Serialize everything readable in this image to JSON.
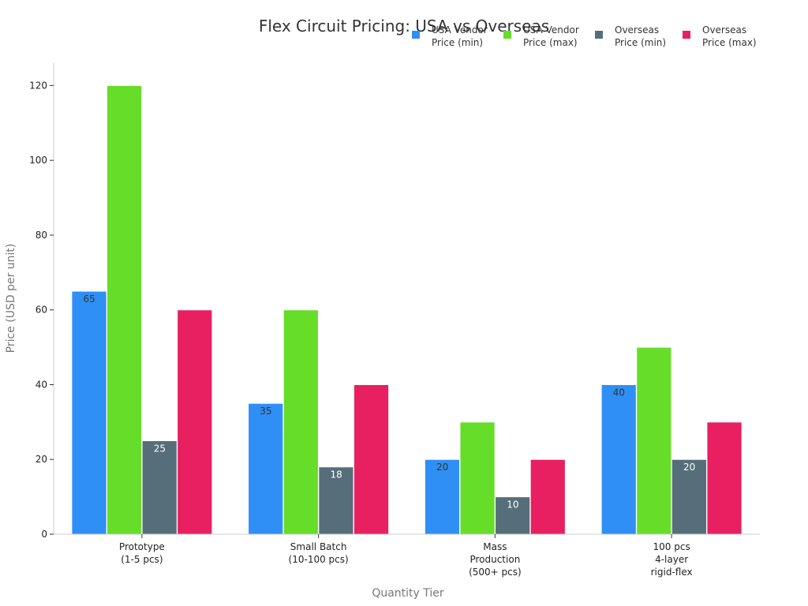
{
  "chart_data": {
    "type": "bar",
    "title": "Flex Circuit Pricing: USA vs Overseas",
    "xlabel": "Quantity Tier",
    "ylabel": "Price (USD per unit)",
    "ylim": [
      0,
      126
    ],
    "yticks": [
      0,
      20,
      40,
      60,
      80,
      100,
      120
    ],
    "grid": false,
    "legend_position": "top-right",
    "categories": [
      [
        "Prototype",
        "(1-5 pcs)"
      ],
      [
        "Small Batch",
        "(10-100 pcs)"
      ],
      [
        "Mass",
        "Production",
        "(500+ pcs)"
      ],
      [
        "100 pcs",
        "4-layer",
        "rigid-flex"
      ]
    ],
    "series": [
      {
        "name": [
          "USA Vendor",
          "Price (min)"
        ],
        "color": "#2f8ff5",
        "values": [
          65,
          35,
          20,
          40
        ],
        "labeled": true,
        "label_color": "#333333"
      },
      {
        "name": [
          "USA Vendor",
          "Price (max)"
        ],
        "color": "#66dd28",
        "values": [
          120,
          60,
          30,
          50
        ],
        "labeled": false,
        "label_color": "#333333"
      },
      {
        "name": [
          "Overseas",
          "Price (min)"
        ],
        "color": "#556e7a",
        "values": [
          25,
          18,
          10,
          20
        ],
        "labeled": true,
        "label_color": "#ffffff"
      },
      {
        "name": [
          "Overseas",
          "Price (max)"
        ],
        "color": "#e81f61",
        "values": [
          60,
          40,
          20,
          30
        ],
        "labeled": false,
        "label_color": "#ffffff"
      }
    ]
  }
}
